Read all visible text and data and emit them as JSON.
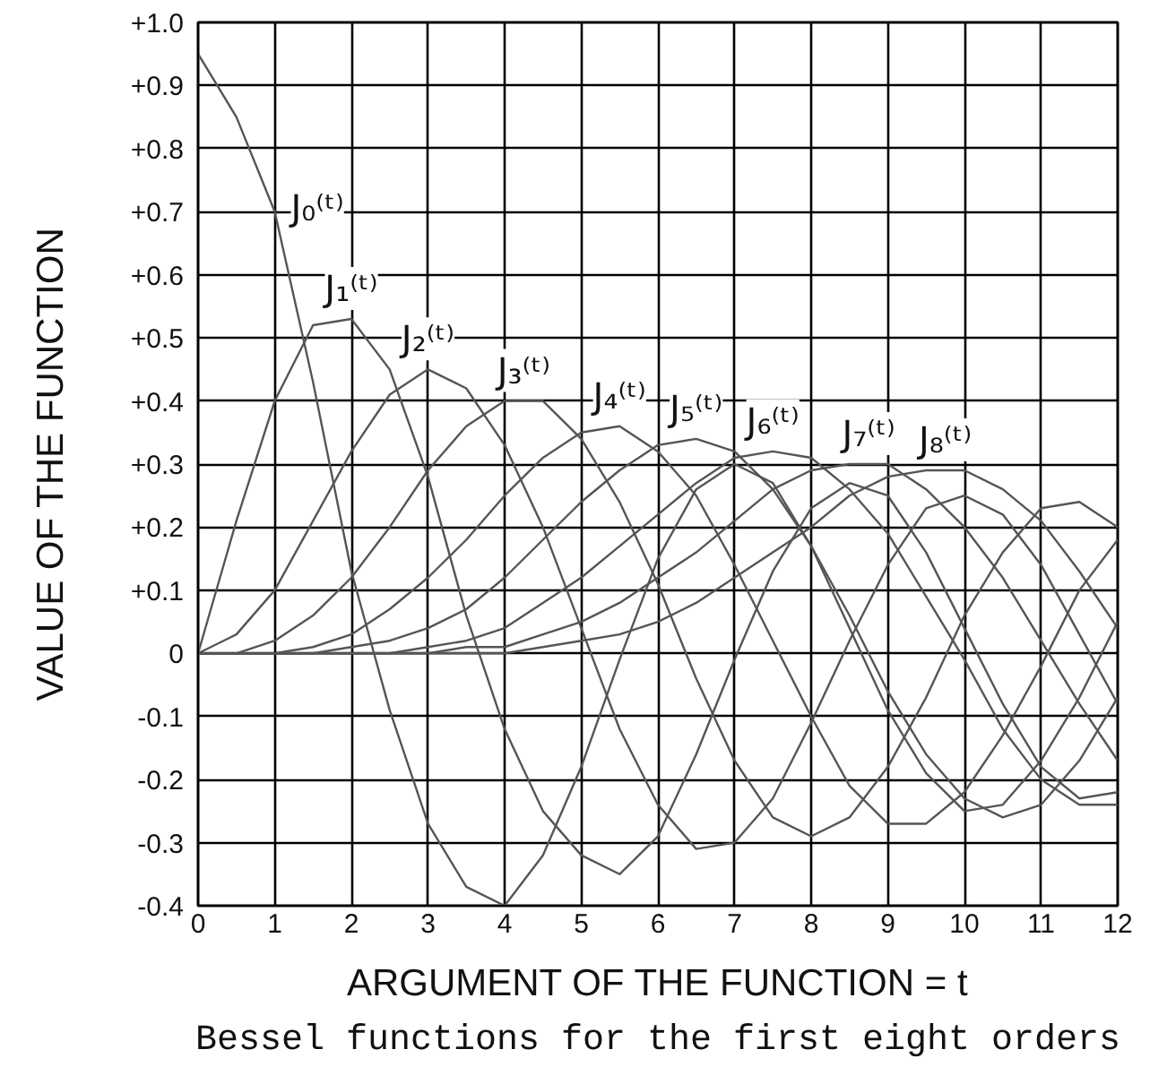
{
  "chart_data": {
    "type": "line",
    "xlabel": "ARGUMENT OF THE FUNCTION = t",
    "ylabel": "VALUE OF THE FUNCTION",
    "xlim": [
      0,
      12
    ],
    "ylim": [
      -0.4,
      1.0
    ],
    "xticks": [
      0,
      1,
      2,
      3,
      4,
      5,
      6,
      7,
      8,
      9,
      10,
      11,
      12
    ],
    "yticks": [
      {
        "value": 1.0,
        "label": "+1.0"
      },
      {
        "value": 0.9,
        "label": "+0.9"
      },
      {
        "value": 0.8,
        "label": "+0.8"
      },
      {
        "value": 0.7,
        "label": "+0.7"
      },
      {
        "value": 0.6,
        "label": "+0.6"
      },
      {
        "value": 0.5,
        "label": "+0.5"
      },
      {
        "value": 0.4,
        "label": "+0.4"
      },
      {
        "value": 0.3,
        "label": "+0.3"
      },
      {
        "value": 0.2,
        "label": "+0.2"
      },
      {
        "value": 0.1,
        "label": "+0.1"
      },
      0,
      -0.1,
      -0.2,
      -0.3,
      -0.4
    ],
    "grid": true,
    "line_style": "solid",
    "x": [
      0,
      0.5,
      1,
      1.5,
      2,
      2.5,
      3,
      3.5,
      4,
      4.5,
      5,
      5.5,
      6,
      6.5,
      7,
      7.5,
      8,
      8.5,
      9,
      9.5,
      10,
      10.5,
      11,
      11.5,
      12
    ],
    "series": [
      {
        "name": "J₀⁽ᵗ⁾",
        "color": "#555555",
        "values": [
          0.95,
          0.85,
          0.7,
          0.43,
          0.13,
          -0.09,
          -0.27,
          -0.37,
          -0.4,
          -0.32,
          -0.18,
          -0.01,
          0.15,
          0.26,
          0.3,
          0.27,
          0.17,
          0.04,
          -0.09,
          -0.19,
          -0.25,
          -0.24,
          -0.17,
          -0.07,
          0.05
        ]
      },
      {
        "name": "J₁⁽ᵗ⁾",
        "color": "#555555",
        "values": [
          0,
          0.21,
          0.4,
          0.52,
          0.53,
          0.45,
          0.28,
          0.06,
          -0.12,
          -0.25,
          -0.32,
          -0.35,
          -0.29,
          -0.16,
          -0.01,
          0.13,
          0.23,
          0.27,
          0.25,
          0.16,
          0.04,
          -0.08,
          -0.18,
          -0.23,
          -0.22
        ]
      },
      {
        "name": "J₂⁽ᵗ⁾",
        "color": "#555555",
        "values": [
          0,
          0.03,
          0.1,
          0.21,
          0.32,
          0.41,
          0.45,
          0.42,
          0.33,
          0.2,
          0.04,
          -0.12,
          -0.24,
          -0.31,
          -0.3,
          -0.23,
          -0.11,
          0.02,
          0.14,
          0.23,
          0.25,
          0.22,
          0.14,
          0.03,
          -0.08
        ]
      },
      {
        "name": "J₃⁽ᵗ⁾",
        "color": "#555555",
        "values": [
          0,
          0,
          0.02,
          0.06,
          0.12,
          0.2,
          0.29,
          0.36,
          0.4,
          0.4,
          0.34,
          0.24,
          0.11,
          -0.04,
          -0.17,
          -0.26,
          -0.29,
          -0.26,
          -0.18,
          -0.07,
          0.06,
          0.16,
          0.23,
          0.24,
          0.2
        ]
      },
      {
        "name": "J₄⁽ᵗ⁾",
        "color": "#555555",
        "values": [
          0,
          0,
          0,
          0.01,
          0.03,
          0.07,
          0.12,
          0.18,
          0.25,
          0.31,
          0.35,
          0.36,
          0.32,
          0.25,
          0.14,
          0.02,
          -0.1,
          -0.21,
          -0.27,
          -0.27,
          -0.22,
          -0.13,
          -0.02,
          0.1,
          0.18
        ]
      },
      {
        "name": "J₅⁽ᵗ⁾",
        "color": "#555555",
        "values": [
          0,
          0,
          0,
          0,
          0.01,
          0.02,
          0.04,
          0.07,
          0.12,
          0.18,
          0.24,
          0.29,
          0.33,
          0.34,
          0.32,
          0.26,
          0.17,
          0.06,
          -0.06,
          -0.16,
          -0.23,
          -0.26,
          -0.24,
          -0.17,
          -0.07
        ]
      },
      {
        "name": "J₆⁽ᵗ⁾",
        "color": "#555555",
        "values": [
          0,
          0,
          0,
          0,
          0,
          0,
          0.01,
          0.02,
          0.04,
          0.08,
          0.12,
          0.17,
          0.22,
          0.27,
          0.31,
          0.32,
          0.31,
          0.26,
          0.19,
          0.09,
          -0.01,
          -0.12,
          -0.2,
          -0.24,
          -0.24
        ]
      },
      {
        "name": "J₇⁽ᵗ⁾",
        "color": "#555555",
        "values": [
          0,
          0,
          0,
          0,
          0,
          0,
          0,
          0.01,
          0.01,
          0.03,
          0.05,
          0.08,
          0.12,
          0.16,
          0.21,
          0.26,
          0.29,
          0.3,
          0.3,
          0.26,
          0.2,
          0.12,
          0.02,
          -0.08,
          -0.17
        ]
      },
      {
        "name": "J₈⁽ᵗ⁾",
        "color": "#555555",
        "values": [
          0,
          0,
          0,
          0,
          0,
          0,
          0,
          0,
          0,
          0.01,
          0.02,
          0.03,
          0.05,
          0.08,
          0.12,
          0.16,
          0.2,
          0.25,
          0.28,
          0.29,
          0.29,
          0.26,
          0.21,
          0.13,
          0.04
        ]
      }
    ],
    "annotations": [
      "Bessel functions for the first eight orders"
    ]
  }
}
